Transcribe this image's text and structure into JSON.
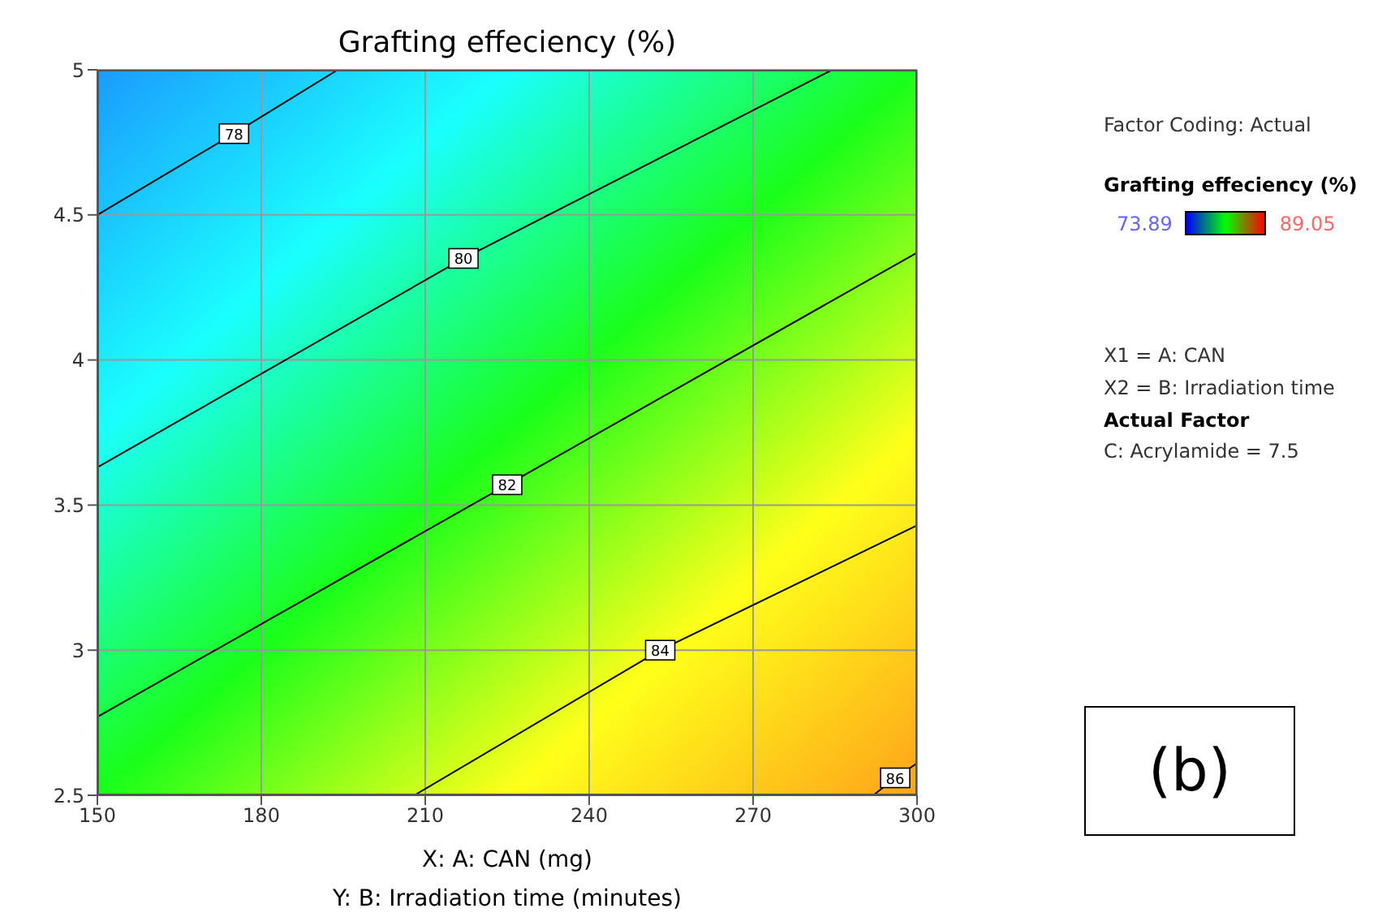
{
  "chart_data": {
    "type": "line",
    "title": "Grafting effeciency (%)",
    "xlabel": "X: A: CAN (mg)",
    "clabel": "Grafting effeciency (%)",
    "xlim": [
      150,
      300
    ],
    "xticks": [
      150,
      180,
      210,
      240,
      270,
      300
    ],
    "ylim": [
      2.5,
      5
    ],
    "yticks": [
      2.5,
      3,
      3.5,
      4,
      4.5,
      5
    ],
    "grid": true,
    "legend": false,
    "marker": "none",
    "line_style": "solid",
    "series": [
      {
        "name": "78",
        "color": "#000000",
        "x": [
          150,
          175,
          194
        ],
        "values": [
          4.5,
          4.78,
          5
        ]
      },
      {
        "name": "80",
        "color": "#000000",
        "x": [
          150,
          217,
          284.5
        ],
        "values": [
          3.63,
          4.35,
          5
        ]
      },
      {
        "name": "82",
        "color": "#000000",
        "x": [
          150,
          225,
          300
        ],
        "values": [
          2.77,
          3.57,
          4.37
        ]
      },
      {
        "name": "84",
        "color": "#000000",
        "x": [
          208,
          253,
          300
        ],
        "values": [
          2.5,
          3.0,
          3.43
        ]
      },
      {
        "name": "86",
        "color": "#000000",
        "x": [
          292,
          296,
          300
        ],
        "values": [
          2.5,
          2.56,
          2.61
        ]
      }
    ],
    "annotations": [
      "Y: B: Irradiation time (minutes)",
      "Factor Coding: Actual",
      "X1 = A: CAN",
      "X2 = B: Irradiation time",
      "Actual Factor",
      "C: Acrylamide = 7.5",
      "(b)",
      "73.89",
      "89.05"
    ]
  }
}
